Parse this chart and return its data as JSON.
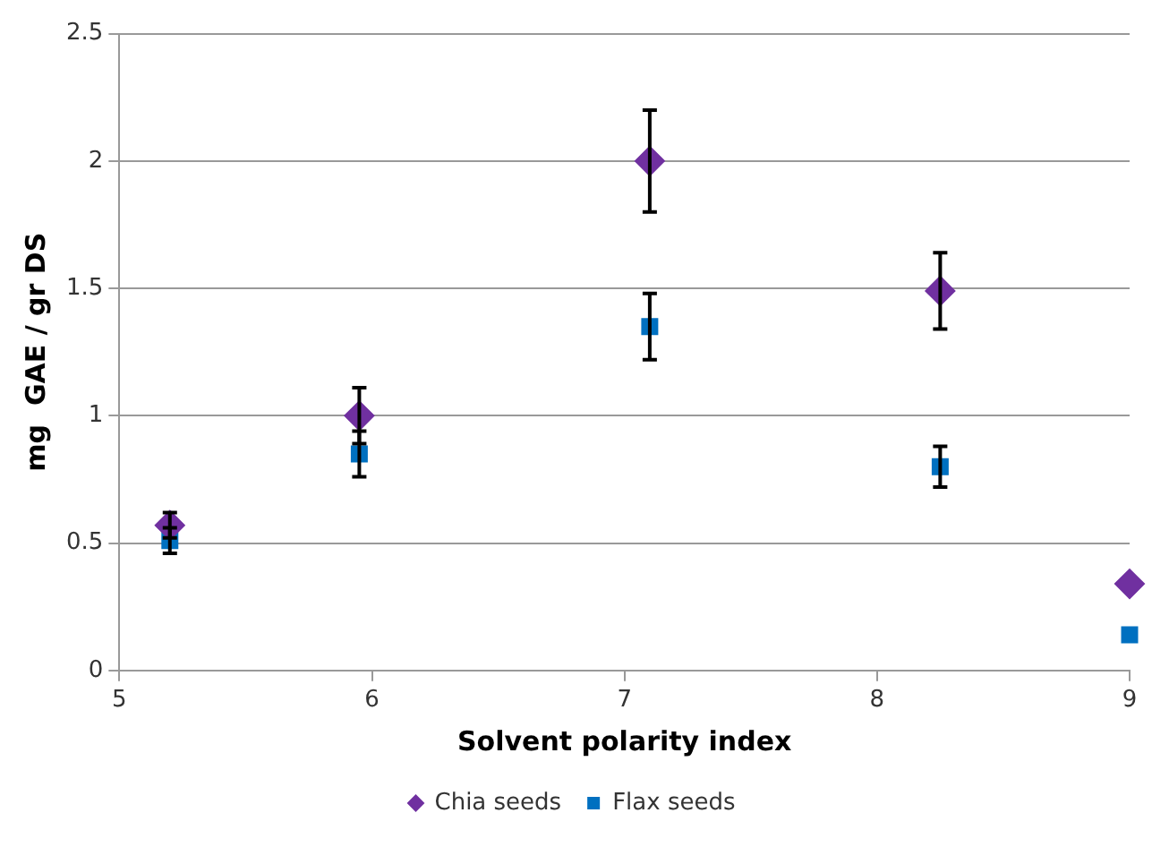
{
  "chart_data": {
    "type": "scatter",
    "xlabel": "Solvent polarity index",
    "ylabel": "mg  GAE / gr DS",
    "x": [
      5.2,
      5.95,
      7.1,
      8.25,
      9.0
    ],
    "series": [
      {
        "name": "Chia seeds",
        "color": "#7030a0",
        "marker": "diamond",
        "values": [
          0.57,
          1.0,
          2.0,
          1.49,
          0.34
        ],
        "errors": [
          0.05,
          0.11,
          0.2,
          0.15,
          null
        ]
      },
      {
        "name": "Flax seeds",
        "color": "#0070c0",
        "marker": "square",
        "values": [
          0.51,
          0.85,
          1.35,
          0.8,
          0.14
        ],
        "errors": [
          0.05,
          0.09,
          0.13,
          0.08,
          null
        ]
      }
    ],
    "xlim": [
      5,
      9
    ],
    "xticks": [
      5,
      6,
      7,
      8,
      9
    ],
    "ylim": [
      0,
      2.5
    ],
    "yticks": [
      0,
      0.5,
      1,
      1.5,
      2,
      2.5
    ],
    "grid": "y",
    "legend": "bottom"
  }
}
